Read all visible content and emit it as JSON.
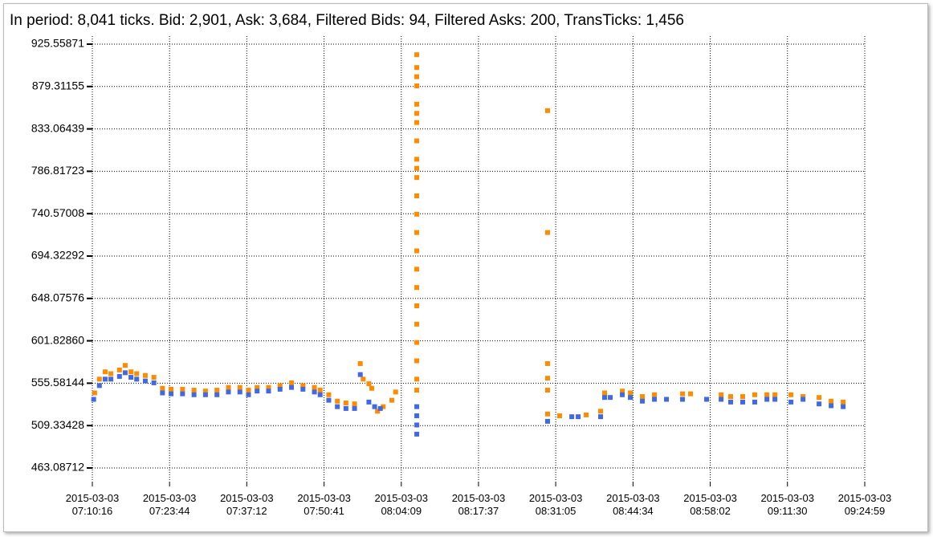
{
  "chart_data": {
    "type": "scatter",
    "title": "In period: 8,041 ticks. Bid: 2,901, Ask: 3,684, Filtered Bids: 94, Filtered Asks: 200, TransTicks: 1,456",
    "xlim": [
      "2015-03-03 07:10:16",
      "2015-03-03 09:24:59"
    ],
    "xticks": [
      "2015-03-03 07:10:16",
      "2015-03-03 07:23:44",
      "2015-03-03 07:37:12",
      "2015-03-03 07:50:41",
      "2015-03-03 08:04:09",
      "2015-03-03 08:17:37",
      "2015-03-03 08:31:05",
      "2015-03-03 08:44:34",
      "2015-03-03 08:58:02",
      "2015-03-03 09:11:30",
      "2015-03-03 09:24:59"
    ],
    "ylim": [
      448.2,
      934.3
    ],
    "yticks": [
      463.08712,
      509.33428,
      555.58144,
      {
        "value": 601.8286,
        "label": "601.82860"
      },
      648.07576,
      694.32292,
      740.57008,
      786.81723,
      833.06439,
      879.31155,
      925.55871
    ],
    "grid": true,
    "series": [
      {
        "color": "#ff8c00",
        "x": [
          "2015-03-03 07:10:40",
          "2015-03-03 07:11:30",
          "2015-03-03 07:12:30",
          "2015-03-03 07:13:30",
          "2015-03-03 07:15:00",
          "2015-03-03 07:16:00",
          "2015-03-03 07:17:00",
          "2015-03-03 07:18:00",
          "2015-03-03 07:19:30",
          "2015-03-03 07:21:00",
          "2015-03-03 07:22:30",
          "2015-03-03 07:24:00",
          "2015-03-03 07:26:00",
          "2015-03-03 07:28:00",
          "2015-03-03 07:30:00",
          "2015-03-03 07:32:00",
          "2015-03-03 07:34:00",
          "2015-03-03 07:36:00",
          "2015-03-03 07:37:30",
          "2015-03-03 07:39:00",
          "2015-03-03 07:41:00",
          "2015-03-03 07:43:00",
          "2015-03-03 07:45:00",
          "2015-03-03 07:47:00",
          "2015-03-03 07:49:00",
          "2015-03-03 07:50:00",
          "2015-03-03 07:51:30",
          "2015-03-03 07:53:00",
          "2015-03-03 07:54:30",
          "2015-03-03 07:56:00",
          "2015-03-03 07:57:00",
          "2015-03-03 07:57:30",
          "2015-03-03 07:58:30",
          "2015-03-03 07:59:00",
          "2015-03-03 08:00:00",
          "2015-03-03 08:01:00",
          "2015-03-03 08:02:30",
          "2015-03-03 08:03:10",
          "2015-03-03 08:06:51",
          "2015-03-03 08:06:51",
          "2015-03-03 08:06:51",
          "2015-03-03 08:06:51",
          "2015-03-03 08:06:51",
          "2015-03-03 08:06:51",
          "2015-03-03 08:06:51",
          "2015-03-03 08:06:51",
          "2015-03-03 08:06:51",
          "2015-03-03 08:06:51",
          "2015-03-03 08:06:51",
          "2015-03-03 08:06:51",
          "2015-03-03 08:06:51",
          "2015-03-03 08:06:51",
          "2015-03-03 08:06:51",
          "2015-03-03 08:06:51",
          "2015-03-03 08:06:51",
          "2015-03-03 08:06:51",
          "2015-03-03 08:06:51",
          "2015-03-03 08:06:51",
          "2015-03-03 08:06:51",
          "2015-03-03 08:06:51",
          "2015-03-03 08:06:51",
          "2015-03-03 08:29:40",
          "2015-03-03 08:29:40",
          "2015-03-03 08:29:40",
          "2015-03-03 08:29:40",
          "2015-03-03 08:29:40",
          "2015-03-03 08:29:40",
          "2015-03-03 08:31:46",
          "2015-03-03 08:36:24",
          "2015-03-03 08:38:55",
          "2015-03-03 08:39:37",
          "2015-03-03 08:42:42",
          "2015-03-03 08:44:06",
          "2015-03-03 08:46:12",
          "2015-03-03 08:48:18",
          "2015-03-03 08:53:12",
          "2015-03-03 08:54:36",
          "2015-03-03 08:59:56",
          "2015-03-03 09:01:36",
          "2015-03-03 09:03:42",
          "2015-03-03 09:05:48",
          "2015-03-03 09:07:55",
          "2015-03-03 09:09:19",
          "2015-03-03 09:12:07",
          "2015-03-03 09:14:13",
          "2015-03-03 09:17:01",
          "2015-03-03 09:19:07",
          "2015-03-03 09:21:13"
        ],
        "values": [
          545,
          560,
          568,
          566,
          570,
          575,
          568,
          566,
          564,
          562,
          550,
          549,
          549,
          548,
          547,
          548,
          551,
          551,
          548,
          551,
          551,
          553,
          556,
          553,
          551,
          548,
          543,
          536,
          534,
          533,
          577,
          560,
          555,
          550,
          525,
          530,
          537,
          546,
          914,
          900,
          890,
          880,
          860,
          850,
          840,
          820,
          800,
          790,
          780,
          760,
          740,
          720,
          700,
          680,
          660,
          640,
          620,
          600,
          580,
          560,
          548,
          853,
          720,
          577,
          561,
          548,
          522,
          520,
          521,
          525,
          545,
          547,
          545,
          541,
          543,
          544,
          544,
          543,
          541,
          541,
          543,
          543,
          543,
          543,
          541,
          540,
          536,
          535
        ]
      },
      {
        "color": "#4169e1",
        "x": [
          "2015-03-03 07:10:30",
          "2015-03-03 07:11:30",
          "2015-03-03 07:12:30",
          "2015-03-03 07:13:30",
          "2015-03-03 07:15:00",
          "2015-03-03 07:16:00",
          "2015-03-03 07:17:00",
          "2015-03-03 07:18:00",
          "2015-03-03 07:19:30",
          "2015-03-03 07:21:00",
          "2015-03-03 07:22:30",
          "2015-03-03 07:24:00",
          "2015-03-03 07:26:00",
          "2015-03-03 07:28:00",
          "2015-03-03 07:30:00",
          "2015-03-03 07:32:00",
          "2015-03-03 07:34:00",
          "2015-03-03 07:36:00",
          "2015-03-03 07:37:30",
          "2015-03-03 07:39:00",
          "2015-03-03 07:41:00",
          "2015-03-03 07:43:00",
          "2015-03-03 07:45:00",
          "2015-03-03 07:47:00",
          "2015-03-03 07:49:00",
          "2015-03-03 07:50:00",
          "2015-03-03 07:51:30",
          "2015-03-03 07:53:00",
          "2015-03-03 07:54:30",
          "2015-03-03 07:56:00",
          "2015-03-03 07:57:00",
          "2015-03-03 07:58:30",
          "2015-03-03 07:59:30",
          "2015-03-03 08:00:30",
          "2015-03-03 08:06:51",
          "2015-03-03 08:06:51",
          "2015-03-03 08:06:51",
          "2015-03-03 08:06:51",
          "2015-03-03 08:29:40",
          "2015-03-03 08:33:53",
          "2015-03-03 08:35:00",
          "2015-03-03 08:38:55",
          "2015-03-03 08:39:37",
          "2015-03-03 08:40:36",
          "2015-03-03 08:42:42",
          "2015-03-03 08:44:06",
          "2015-03-03 08:46:12",
          "2015-03-03 08:48:18",
          "2015-03-03 08:50:24",
          "2015-03-03 08:53:12",
          "2015-03-03 08:57:24",
          "2015-03-03 08:59:56",
          "2015-03-03 09:01:36",
          "2015-03-03 09:03:42",
          "2015-03-03 09:05:48",
          "2015-03-03 09:07:55",
          "2015-03-03 09:09:19",
          "2015-03-03 09:12:07",
          "2015-03-03 09:14:13",
          "2015-03-03 09:17:01",
          "2015-03-03 09:19:07",
          "2015-03-03 09:21:13"
        ],
        "values": [
          538,
          553,
          560,
          560,
          563,
          567,
          562,
          560,
          558,
          556,
          545,
          544,
          544,
          543,
          543,
          543,
          546,
          546,
          543,
          547,
          547,
          549,
          551,
          549,
          546,
          543,
          537,
          530,
          528,
          528,
          565,
          535,
          530,
          528,
          530,
          520,
          510,
          500,
          514,
          519,
          519,
          519,
          540,
          540,
          543,
          540,
          536,
          538,
          538,
          538,
          538,
          538,
          535,
          535,
          535,
          538,
          538,
          535,
          538,
          533,
          531,
          530
        ]
      }
    ]
  }
}
